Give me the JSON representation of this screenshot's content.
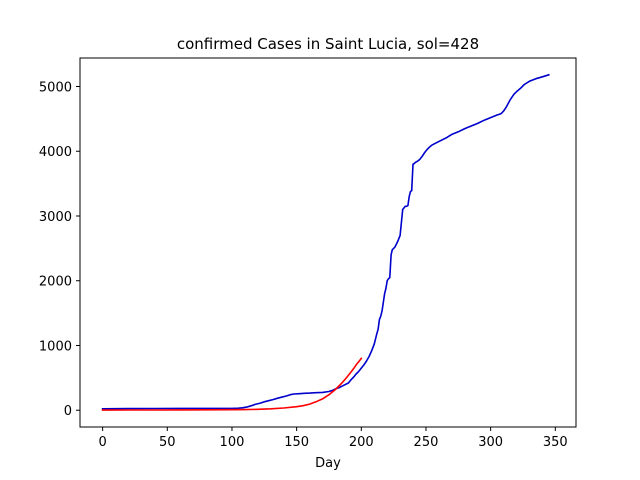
{
  "chart_data": {
    "type": "line",
    "title": "confirmed Cases in Saint Lucia, sol=428",
    "xlabel": "Day",
    "ylabel": "",
    "xlim": [
      -17.5,
      366
    ],
    "ylim": [
      -259,
      5440
    ],
    "xticks": [
      0,
      50,
      100,
      150,
      200,
      250,
      300,
      350
    ],
    "yticks": [
      0,
      1000,
      2000,
      3000,
      4000,
      5000
    ],
    "grid": false,
    "legend": "none",
    "series": [
      {
        "color": "#0000cc",
        "x": [
          0,
          20,
          40,
          60,
          80,
          100,
          105,
          108,
          112,
          115,
          118,
          122,
          125,
          128,
          132,
          135,
          138,
          142,
          145,
          148,
          152,
          156,
          160,
          165,
          170,
          175,
          178,
          180,
          183,
          186,
          190,
          192,
          194,
          196,
          198,
          200,
          202,
          204,
          206,
          208,
          210,
          212,
          213,
          214,
          215,
          216,
          218,
          219,
          220,
          221,
          222,
          223,
          224,
          225,
          226,
          228,
          230,
          232,
          234,
          235,
          236,
          237,
          238,
          239,
          240,
          241,
          242,
          243,
          245,
          247,
          249,
          251,
          253,
          255,
          258,
          262,
          266,
          270,
          275,
          280,
          285,
          290,
          295,
          300,
          305,
          308,
          310,
          312,
          315,
          318,
          320,
          323,
          326,
          330,
          335,
          340,
          345
        ],
        "y": [
          22,
          25,
          27,
          28,
          28,
          28,
          32,
          38,
          52,
          70,
          90,
          110,
          130,
          145,
          165,
          185,
          200,
          220,
          240,
          250,
          255,
          262,
          265,
          270,
          275,
          290,
          310,
          330,
          350,
          380,
          420,
          470,
          510,
          560,
          600,
          650,
          700,
          760,
          830,
          920,
          1020,
          1180,
          1250,
          1400,
          1450,
          1530,
          1800,
          1880,
          2000,
          2030,
          2050,
          2400,
          2480,
          2500,
          2520,
          2600,
          2700,
          3100,
          3150,
          3150,
          3160,
          3300,
          3380,
          3390,
          3800,
          3810,
          3830,
          3840,
          3870,
          3920,
          3980,
          4030,
          4070,
          4100,
          4130,
          4170,
          4210,
          4260,
          4300,
          4350,
          4390,
          4430,
          4480,
          4520,
          4560,
          4580,
          4620,
          4680,
          4790,
          4880,
          4920,
          4970,
          5030,
          5080,
          5120,
          5150,
          5180
        ]
      },
      {
        "color": "#ff0000",
        "x": [
          0,
          20,
          40,
          60,
          80,
          100,
          110,
          120,
          130,
          140,
          150,
          155,
          160,
          165,
          170,
          175,
          180,
          185,
          188,
          190,
          192,
          194,
          196,
          198,
          200
        ],
        "y": [
          2,
          3,
          4,
          5,
          6,
          8,
          10,
          14,
          22,
          35,
          55,
          70,
          95,
          130,
          175,
          240,
          320,
          420,
          490,
          540,
          590,
          640,
          700,
          750,
          800
        ]
      }
    ]
  }
}
